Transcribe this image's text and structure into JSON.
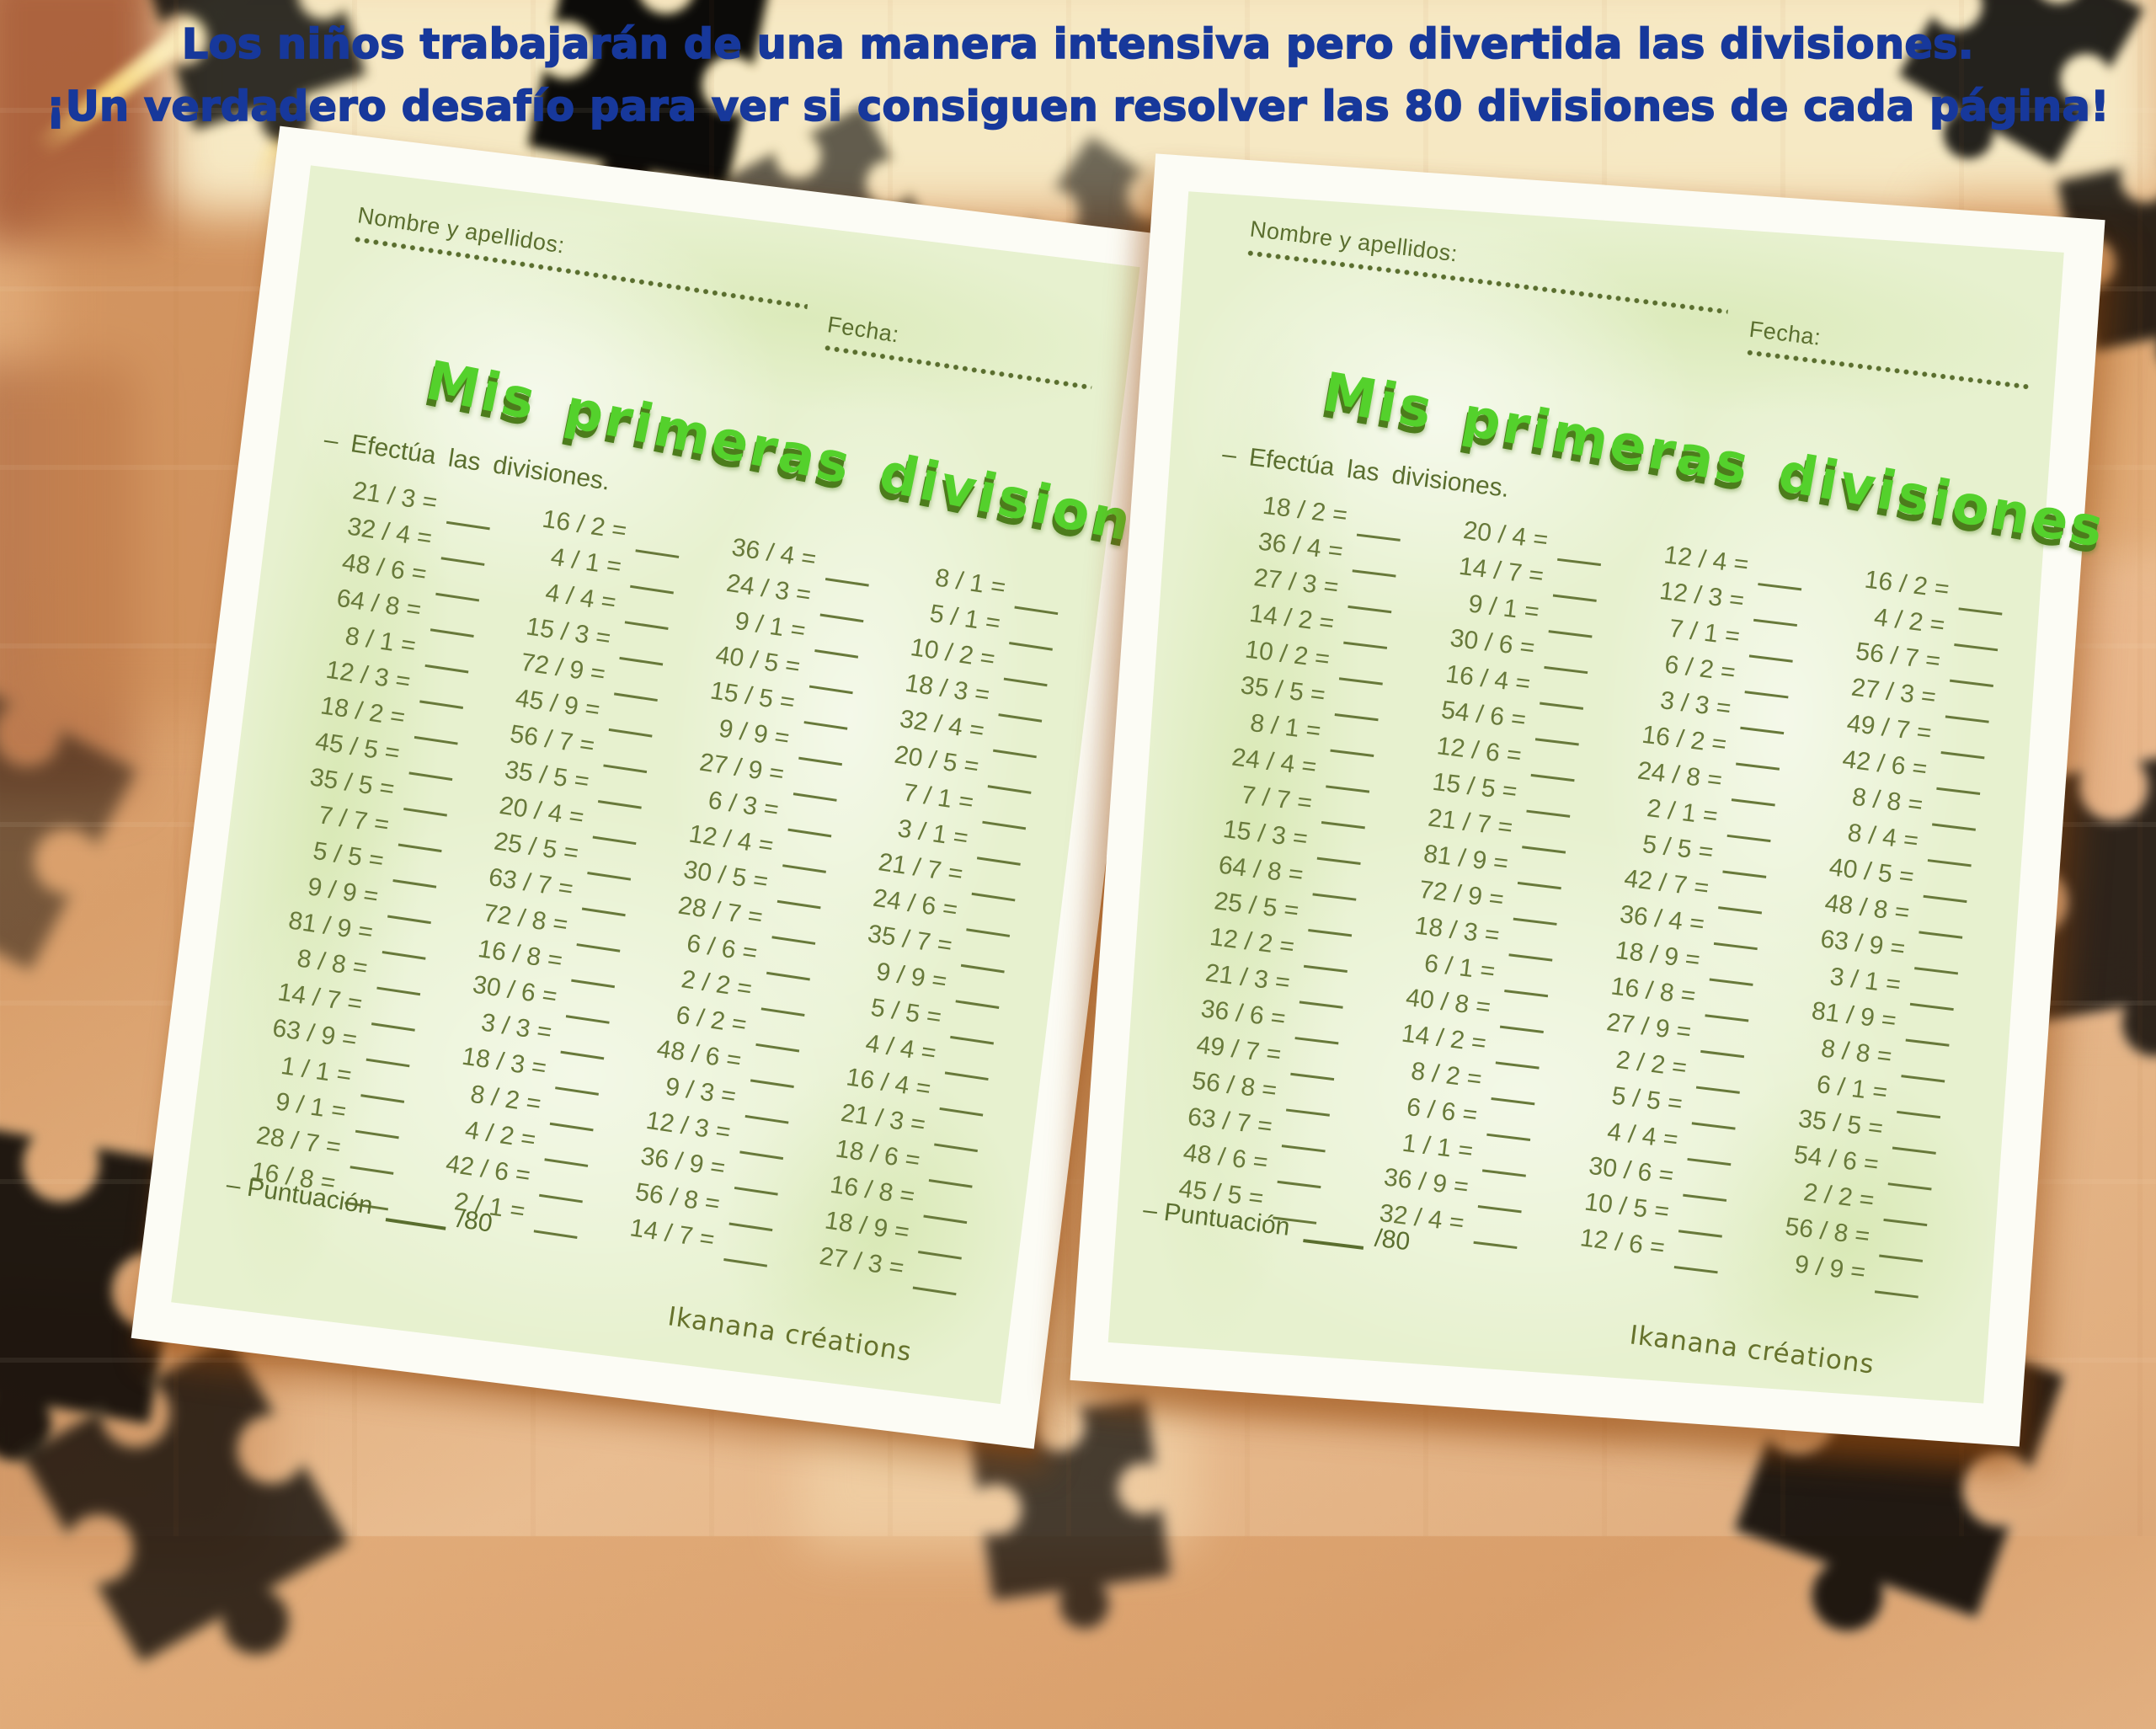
{
  "poster": {
    "headline_line1": "Los niños trabajarán de una manera intensiva pero divertida las divisiones.",
    "headline_line2": "¡Un verdadero desafío para ver si consiguen resolver las 80 divisiones de cada página!",
    "colors": {
      "headline_blue": "#17389b",
      "background_tan": "#e3ae7c",
      "puzzle_outline_yellow": "#ffe27d",
      "puzzle_outline_white": "#fdf3d8"
    }
  },
  "worksheet": {
    "name_label": "Nombre y apellidos:",
    "date_label": "Fecha:",
    "title": "Mis primeras divisiones",
    "instruction": "– Efectúa las divisiones.",
    "score_label": "– Puntuación",
    "score_total": "/80",
    "credit": "Ikanana créations",
    "colors": {
      "paper_green": "#e7f1cf",
      "ink_olive": "#68793a",
      "title_green": "#54d12c",
      "title_shadow": "#4c7c1c"
    }
  },
  "pages": [
    {
      "side": "left",
      "columns": [
        [
          "21 / 3",
          "32 / 4",
          "48 / 6",
          "64 / 8",
          "8 / 1",
          "12 / 3",
          "18 / 2",
          "45 / 5",
          "35 / 5",
          "7 / 7",
          "5 / 5",
          "9 / 9",
          "81 / 9",
          "8 / 8",
          "14 / 7",
          "63 / 9",
          "1 / 1",
          "9 / 1",
          "28 / 7",
          "16 / 8"
        ],
        [
          "16 / 2",
          "4 / 1",
          "4 / 4",
          "15 / 3",
          "72 / 9",
          "45 / 9",
          "56 / 7",
          "35 / 5",
          "20 / 4",
          "25 / 5",
          "63 / 7",
          "72 / 8",
          "16 / 8",
          "30 / 6",
          "3 / 3",
          "18 / 3",
          "8 / 2",
          "4 / 2",
          "42 / 6",
          "2 / 1"
        ],
        [
          "36 / 4",
          "24 / 3",
          "9 / 1",
          "40 / 5",
          "15 / 5",
          "9 / 9",
          "27 / 9",
          "6 / 3",
          "12 / 4",
          "30 / 5",
          "28 / 7",
          "6 / 6",
          "2 / 2",
          "6 / 2",
          "48 / 6",
          "9 / 3",
          "12 / 3",
          "36 / 9",
          "56 / 8",
          "14 / 7"
        ],
        [
          "8 / 1",
          "5 / 1",
          "10 / 2",
          "18 / 3",
          "32 / 4",
          "20 / 5",
          "7 / 1",
          "3 / 1",
          "21 / 7",
          "24 / 6",
          "35 / 7",
          "9 / 9",
          "5 / 5",
          "4 / 4",
          "16 / 4",
          "21 / 3",
          "18 / 6",
          "16 / 8",
          "18 / 9",
          "27 / 3"
        ]
      ]
    },
    {
      "side": "right",
      "columns": [
        [
          "18 / 2",
          "36 / 4",
          "27 / 3",
          "14 / 2",
          "10 / 2",
          "35 / 5",
          "8 / 1",
          "24 / 4",
          "7 / 7",
          "15 / 3",
          "64 / 8",
          "25 / 5",
          "12 / 2",
          "21 / 3",
          "36 / 6",
          "49 / 7",
          "56 / 8",
          "63 / 7",
          "48 / 6",
          "45 / 5"
        ],
        [
          "20 / 4",
          "14 / 7",
          "9 / 1",
          "30 / 6",
          "16 / 4",
          "54 / 6",
          "12 / 6",
          "15 / 5",
          "21 / 7",
          "81 / 9",
          "72 / 9",
          "18 / 3",
          "6 / 1",
          "40 / 8",
          "14 / 2",
          "8 / 2",
          "6 / 6",
          "1 / 1",
          "36 / 9",
          "32 / 4"
        ],
        [
          "12 / 4",
          "12 / 3",
          "7 / 1",
          "6 / 2",
          "3 / 3",
          "16 / 2",
          "24 / 8",
          "2 / 1",
          "5 / 5",
          "42 / 7",
          "36 / 4",
          "18 / 9",
          "16 / 8",
          "27 / 9",
          "2 / 2",
          "5 / 5",
          "4 / 4",
          "30 / 6",
          "10 / 5",
          "12 / 6"
        ],
        [
          "16 / 2",
          "4 / 2",
          "56 / 7",
          "27 / 3",
          "49 / 7",
          "42 / 6",
          "8 / 8",
          "8 / 4",
          "40 / 5",
          "48 / 8",
          "63 / 9",
          "3 / 1",
          "81 / 9",
          "8 / 8",
          "6 / 1",
          "35 / 5",
          "54 / 6",
          "2 / 2",
          "56 / 8",
          "9 / 9"
        ]
      ]
    }
  ]
}
